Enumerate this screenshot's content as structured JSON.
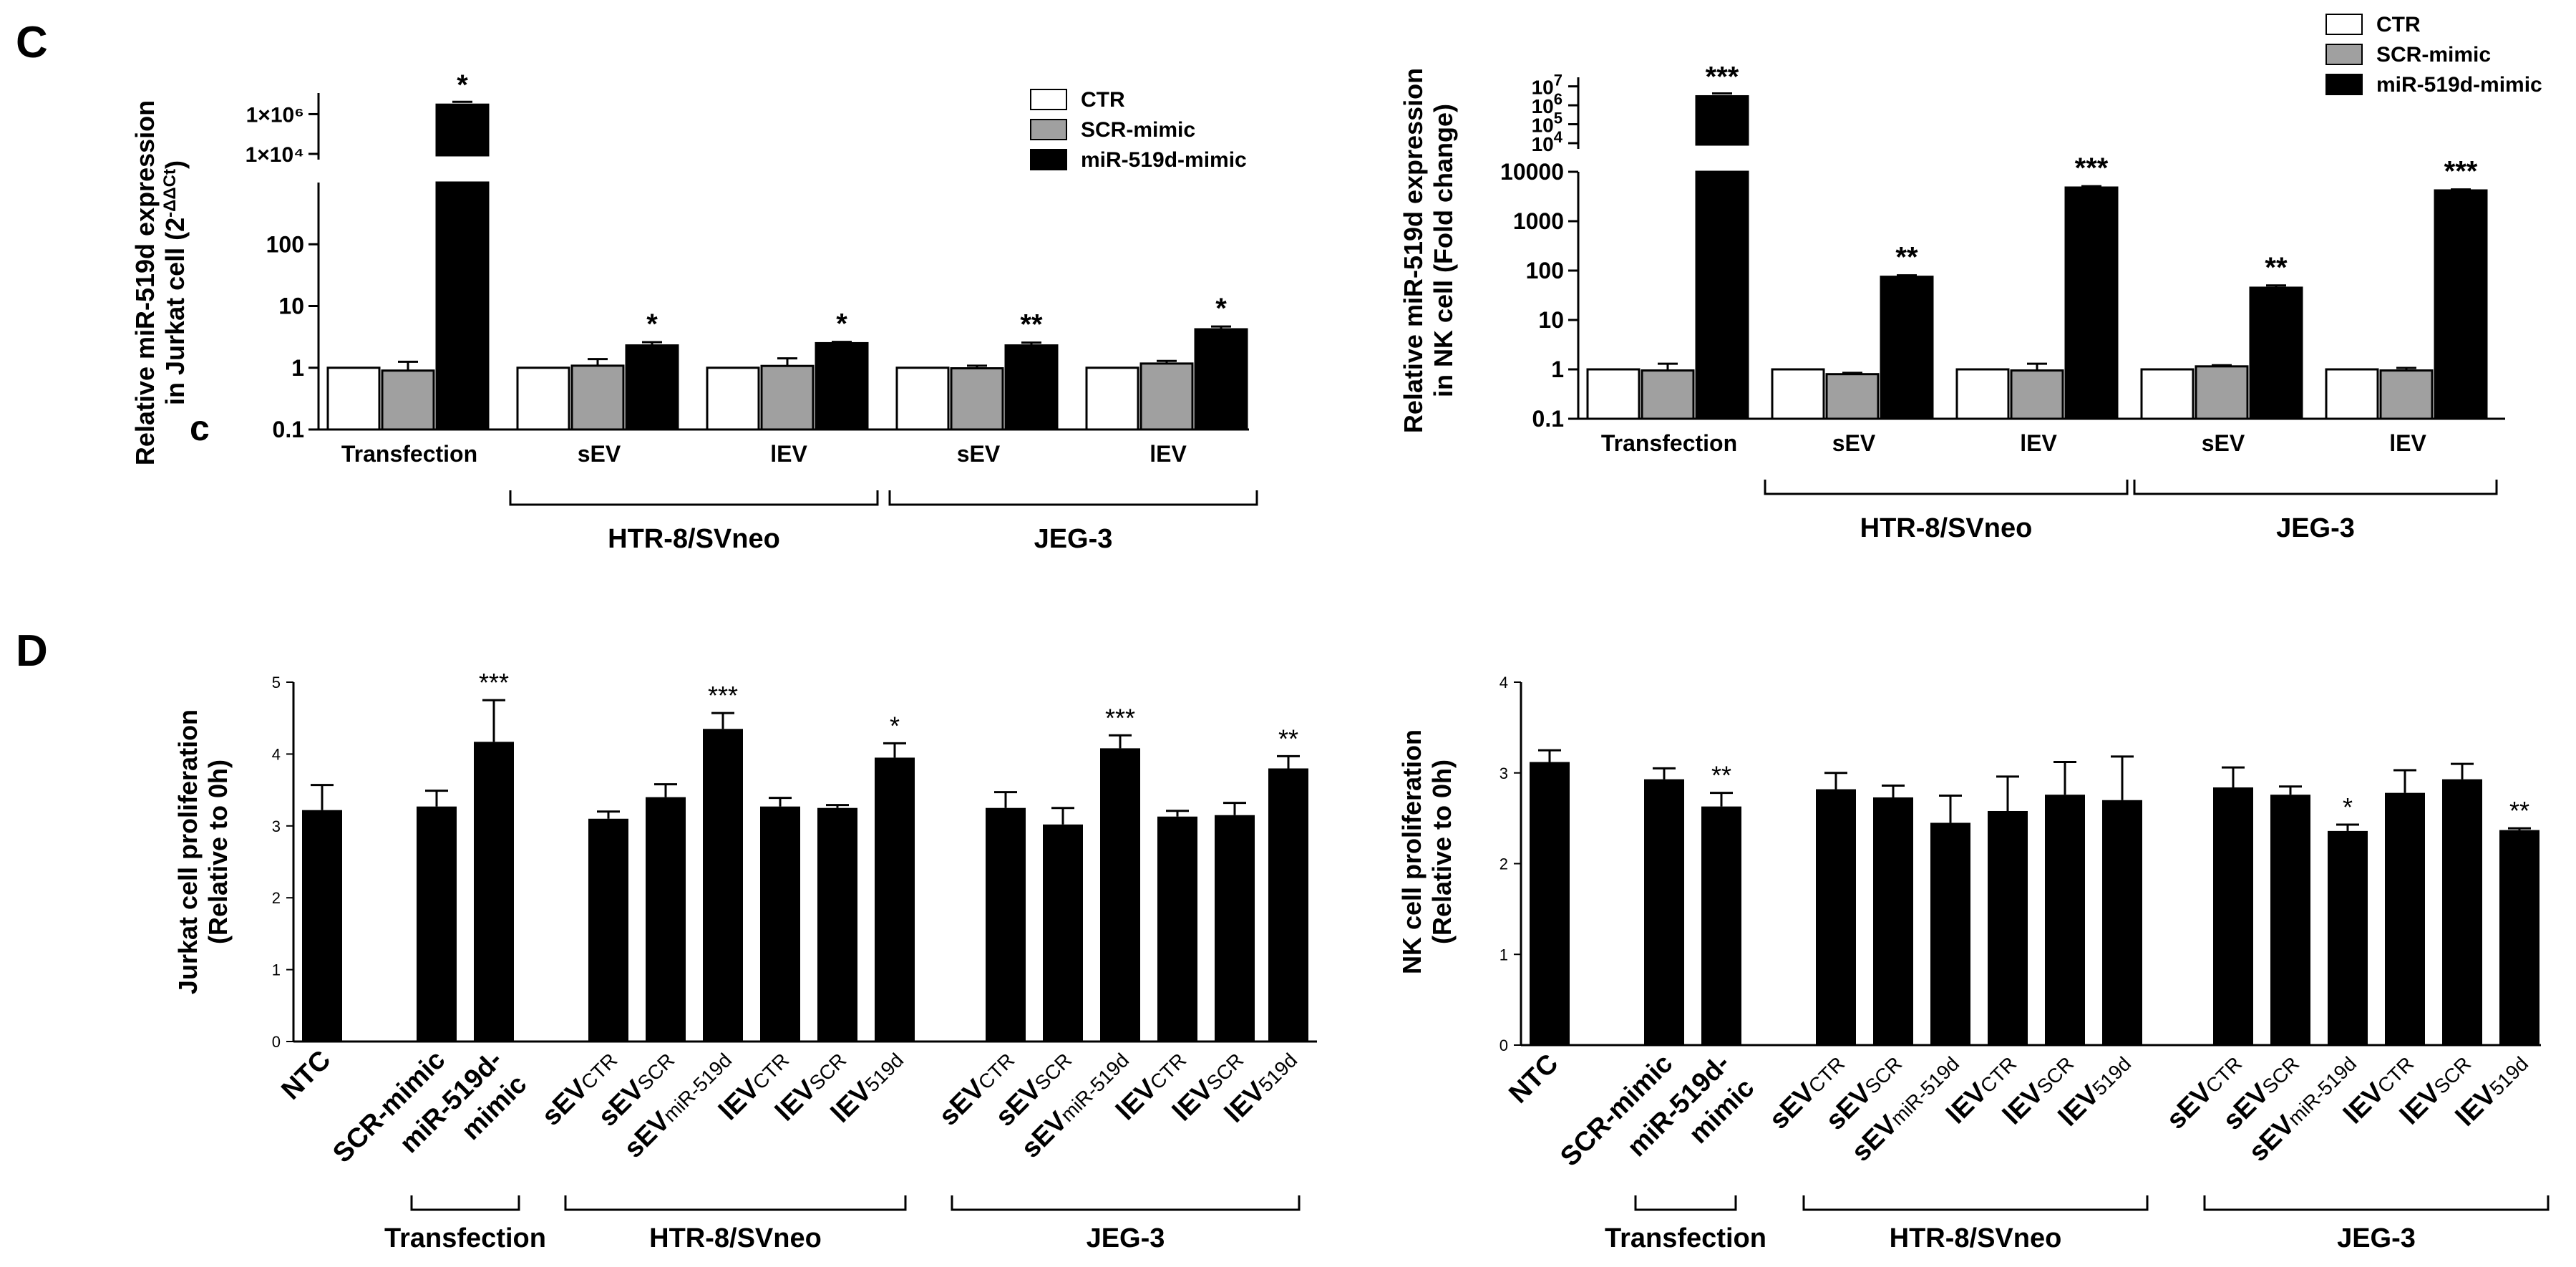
{
  "panel_labels": {
    "c": "C",
    "d": "D",
    "stray_c": "c"
  },
  "legend": [
    {
      "label": "CTR",
      "color": "#ffffff"
    },
    {
      "label": "SCR-mimic",
      "color": "#a0a0a0"
    },
    {
      "label": "miR-519d-mimic",
      "color": "#000000"
    }
  ],
  "chart_data": [
    {
      "id": "C-left",
      "type": "bar",
      "scale": "log",
      "ylabel_line1": "Relative miR-519d expression",
      "ylabel_line2": "in Jurkat cell (2",
      "ylabel_sup": "-ΔΔCt",
      "ylabel_close": ")",
      "yticks": [
        "0.1",
        "1",
        "10",
        "100"
      ],
      "yticks_upper": [
        "1×10⁴",
        "1×10⁶"
      ],
      "categories": [
        "Transfection",
        "sEV",
        "lEV",
        "sEV",
        "lEV"
      ],
      "groups": [
        {
          "label": "HTR-8/SVneo",
          "spans": [
            1,
            2
          ]
        },
        {
          "label": "JEG-3",
          "spans": [
            3,
            4
          ]
        }
      ],
      "series": [
        {
          "name": "CTR",
          "values": [
            1,
            1,
            1,
            1,
            1
          ],
          "errors": [
            0,
            0,
            0,
            0,
            0
          ]
        },
        {
          "name": "SCR-mimic",
          "values": [
            0.9,
            1.08,
            1.07,
            0.98,
            1.17
          ],
          "errors": [
            0.35,
            0.3,
            0.35,
            0.1,
            0.12
          ]
        },
        {
          "name": "miR-519d-mimic",
          "values": [
            3000000,
            2.3,
            2.5,
            2.3,
            4.2
          ],
          "errors": [
            0,
            0.3,
            0.12,
            0.25,
            0.45
          ]
        }
      ],
      "significance": [
        "*",
        "*",
        "*",
        "**",
        "*"
      ]
    },
    {
      "id": "C-right",
      "type": "bar",
      "scale": "log",
      "ylabel_line1": "Relative miR-519d expression",
      "ylabel_line2": "in NK cell (Fold change)",
      "yticks": [
        "0.1",
        "1",
        "10",
        "100",
        "1000",
        "10000"
      ],
      "yticks_upper_base": [
        "10",
        "10",
        "10",
        "10"
      ],
      "yticks_upper_exp": [
        "4",
        "5",
        "6",
        "7"
      ],
      "categories": [
        "Transfection",
        "sEV",
        "lEV",
        "sEV",
        "lEV"
      ],
      "groups": [
        {
          "label": "HTR-8/SVneo",
          "spans": [
            1,
            2
          ]
        },
        {
          "label": "JEG-3",
          "spans": [
            3,
            4
          ]
        }
      ],
      "series": [
        {
          "name": "CTR",
          "values": [
            1,
            1,
            1,
            1,
            1
          ],
          "errors": [
            0,
            0,
            0,
            0,
            0
          ]
        },
        {
          "name": "SCR-mimic",
          "values": [
            0.95,
            0.8,
            0.95,
            1.15,
            0.95
          ],
          "errors": [
            0.35,
            0.05,
            0.35,
            0.06,
            0.12
          ]
        },
        {
          "name": "miR-519d-mimic",
          "values": [
            3000000,
            75,
            4800,
            45,
            4200
          ],
          "errors": [
            0,
            5,
            300,
            5,
            200
          ]
        }
      ],
      "significance": [
        "***",
        "**",
        "***",
        "**",
        "***"
      ]
    },
    {
      "id": "D-left",
      "type": "bar",
      "scale": "linear",
      "ylim": [
        0,
        5
      ],
      "ylabel_line1": "Jurkat cell proliferation",
      "ylabel_line2": "(Relative to 0h)",
      "yticks": [
        "0",
        "1",
        "2",
        "3",
        "4",
        "5"
      ],
      "bars": [
        {
          "main": "NTC",
          "sub": "",
          "value": 3.22,
          "error": 0.35,
          "sig": ""
        },
        {
          "main": "SCR-mimic",
          "sub": "",
          "value": 3.27,
          "error": 0.22,
          "sig": ""
        },
        {
          "main": "miR-519d-",
          "main2": "mimic",
          "sub": "",
          "value": 4.17,
          "error": 0.58,
          "sig": "***"
        },
        {
          "main": "sEV",
          "sub": "CTR",
          "value": 3.1,
          "error": 0.1,
          "sig": ""
        },
        {
          "main": "sEV",
          "sub": "SCR",
          "value": 3.4,
          "error": 0.18,
          "sig": ""
        },
        {
          "main": "sEV",
          "sub": "miR-519d",
          "value": 4.35,
          "error": 0.22,
          "sig": "***"
        },
        {
          "main": "lEV",
          "sub": "CTR",
          "value": 3.27,
          "error": 0.12,
          "sig": ""
        },
        {
          "main": "lEV",
          "sub": "SCR",
          "value": 3.25,
          "error": 0.04,
          "sig": ""
        },
        {
          "main": "lEV",
          "sub": "519d",
          "value": 3.95,
          "error": 0.2,
          "sig": "*"
        },
        {
          "main": "sEV",
          "sub": "CTR",
          "value": 3.25,
          "error": 0.22,
          "sig": ""
        },
        {
          "main": "sEV",
          "sub": "SCR",
          "value": 3.02,
          "error": 0.23,
          "sig": ""
        },
        {
          "main": "sEV",
          "sub": "miR-519d",
          "value": 4.08,
          "error": 0.18,
          "sig": "***"
        },
        {
          "main": "lEV",
          "sub": "CTR",
          "value": 3.13,
          "error": 0.08,
          "sig": ""
        },
        {
          "main": "lEV",
          "sub": "SCR",
          "value": 3.15,
          "error": 0.17,
          "sig": ""
        },
        {
          "main": "lEV",
          "sub": "519d",
          "value": 3.8,
          "error": 0.17,
          "sig": "**"
        }
      ],
      "groups": [
        "Transfection",
        "HTR-8/SVneo",
        "JEG-3"
      ]
    },
    {
      "id": "D-right",
      "type": "bar",
      "scale": "linear",
      "ylim": [
        0,
        4
      ],
      "ylabel_line1": "NK cell proliferation",
      "ylabel_line2": "(Relative to 0h)",
      "yticks": [
        "0",
        "1",
        "2",
        "3",
        "4"
      ],
      "bars": [
        {
          "main": "NTC",
          "sub": "",
          "value": 3.12,
          "error": 0.13,
          "sig": ""
        },
        {
          "main": "SCR-mimic",
          "sub": "",
          "value": 2.93,
          "error": 0.12,
          "sig": ""
        },
        {
          "main": "miR-519d-",
          "main2": "mimic",
          "sub": "",
          "value": 2.63,
          "error": 0.15,
          "sig": "**"
        },
        {
          "main": "sEV",
          "sub": "CTR",
          "value": 2.82,
          "error": 0.18,
          "sig": ""
        },
        {
          "main": "sEV",
          "sub": "SCR",
          "value": 2.73,
          "error": 0.13,
          "sig": ""
        },
        {
          "main": "sEV",
          "sub": "miR-519d",
          "value": 2.45,
          "error": 0.3,
          "sig": ""
        },
        {
          "main": "lEV",
          "sub": "CTR",
          "value": 2.58,
          "error": 0.38,
          "sig": ""
        },
        {
          "main": "lEV",
          "sub": "SCR",
          "value": 2.76,
          "error": 0.36,
          "sig": ""
        },
        {
          "main": "lEV",
          "sub": "519d",
          "value": 2.7,
          "error": 0.48,
          "sig": ""
        },
        {
          "main": "sEV",
          "sub": "CTR",
          "value": 2.84,
          "error": 0.22,
          "sig": ""
        },
        {
          "main": "sEV",
          "sub": "SCR",
          "value": 2.76,
          "error": 0.09,
          "sig": ""
        },
        {
          "main": "sEV",
          "sub": "miR-519d",
          "value": 2.36,
          "error": 0.07,
          "sig": "*"
        },
        {
          "main": "lEV",
          "sub": "CTR",
          "value": 2.78,
          "error": 0.25,
          "sig": ""
        },
        {
          "main": "lEV",
          "sub": "SCR",
          "value": 2.93,
          "error": 0.17,
          "sig": ""
        },
        {
          "main": "lEV",
          "sub": "519d",
          "value": 2.37,
          "error": 0.02,
          "sig": "**"
        }
      ],
      "groups": [
        "Transfection",
        "HTR-8/SVneo",
        "JEG-3"
      ]
    }
  ]
}
